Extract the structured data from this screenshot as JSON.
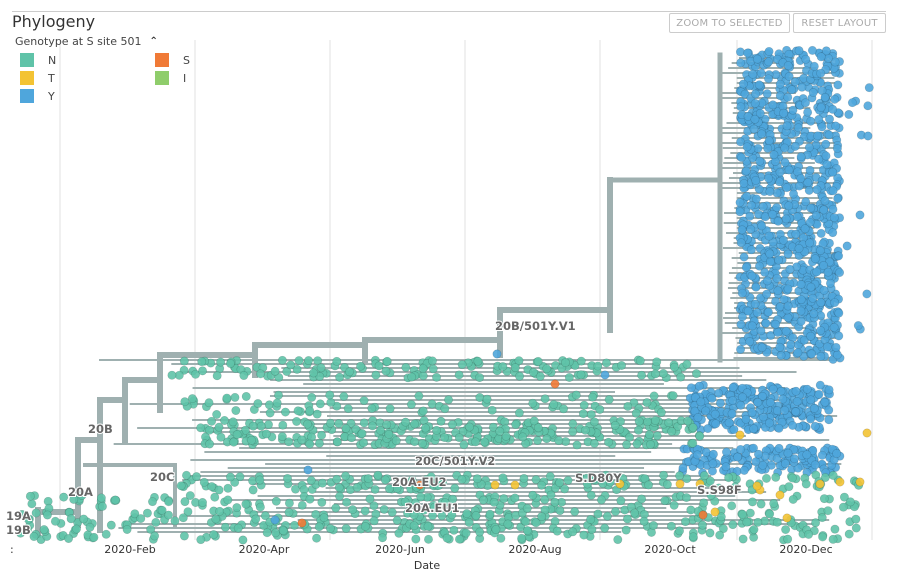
{
  "panel": {
    "title": "Phylogeny",
    "buttons": {
      "zoom_to_selected": "ZOOM TO SELECTED",
      "reset_layout": "RESET LAYOUT"
    }
  },
  "legend": {
    "title": "Genotype at S site 501",
    "toggle_icon": "chevron-up-icon",
    "items": [
      {
        "label": "N",
        "color": "#5fc3a8"
      },
      {
        "label": "T",
        "color": "#f3c334"
      },
      {
        "label": "Y",
        "color": "#4fa6dc"
      },
      {
        "label": "S",
        "color": "#f07a36"
      },
      {
        "label": "I",
        "color": "#8fcd6b"
      }
    ]
  },
  "colors": {
    "branch": "#9fb0b0",
    "grid": "#e2e2e2"
  },
  "chart_data": {
    "type": "scatter",
    "subtype": "time-scaled phylogenetic tree",
    "title": "Phylogeny",
    "xlabel": "Date",
    "x_ticks": [
      "2020-Feb",
      "2020-Apr",
      "2020-Jun",
      "2020-Aug",
      "2020-Oct",
      "2020-Dec"
    ],
    "x_edge_label": ":",
    "color_by": "Genotype at S site 501",
    "clade_labels": [
      "19A",
      "19B",
      "20A",
      "20B",
      "20C",
      "20B/501Y.V1",
      "20C/501Y.V2",
      "20A.EU2",
      "20A.EU1",
      "S.D80Y",
      "S.S98F"
    ]
  }
}
